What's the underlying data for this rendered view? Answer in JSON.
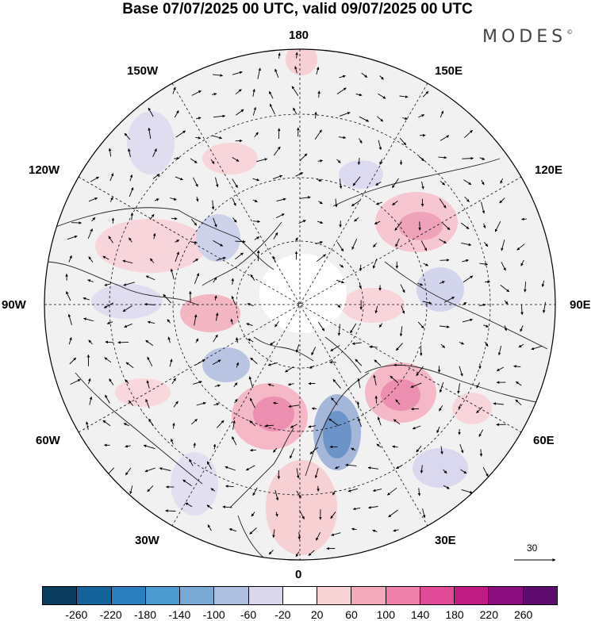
{
  "title": "Base 07/07/2025 00 UTC, valid 09/07/2025 00 UTC",
  "logo": {
    "text": "MODES",
    "mark": "©"
  },
  "map": {
    "projection": "north-polar-stereographic",
    "longitude_labels": {
      "top": "180",
      "bottom": "0",
      "left": "90W",
      "right": "90E",
      "upper_left_1": "150W",
      "upper_left_2": "120W",
      "upper_right_1": "150E",
      "upper_right_2": "120E",
      "lower_left_1": "60W",
      "lower_left_2": "30W",
      "lower_right_1": "60E",
      "lower_right_2": "30E"
    },
    "reference_vector": {
      "label": "30"
    }
  },
  "colorbar": {
    "ticks": [
      "-260",
      "-220",
      "-180",
      "-140",
      "-100",
      "-60",
      "-20",
      "20",
      "60",
      "100",
      "140",
      "180",
      "220",
      "260"
    ],
    "colors": [
      "#0b3d5e",
      "#14639a",
      "#2a7fbf",
      "#4b9bd0",
      "#7aa9d6",
      "#aebede",
      "#dad7ec",
      "#ffffff",
      "#f7d3d6",
      "#f3a9b9",
      "#ee7fa8",
      "#e14a97",
      "#c01a83",
      "#8a0e7e",
      "#5e0b6e"
    ]
  }
}
